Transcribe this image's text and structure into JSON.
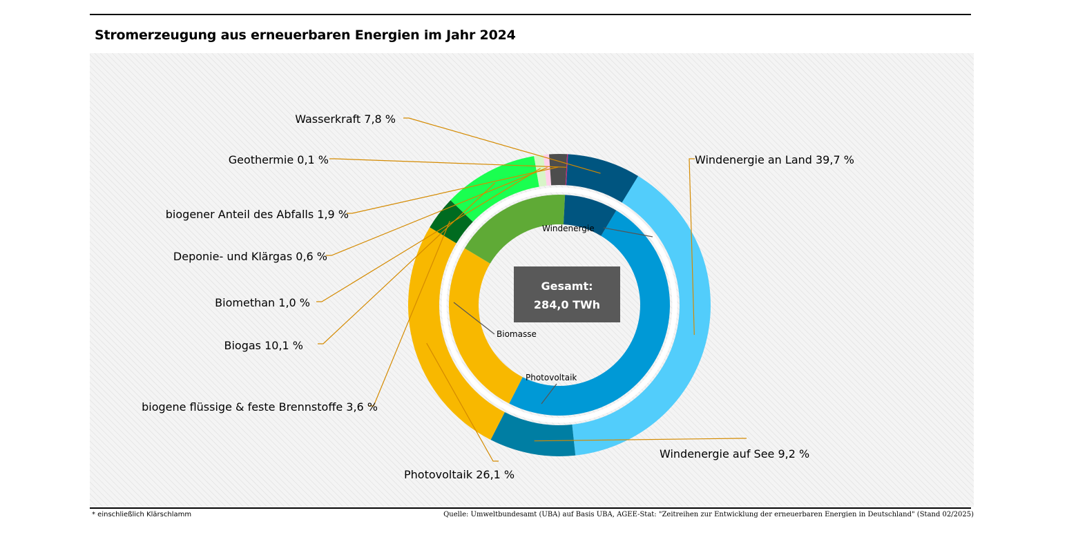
{
  "title": "Stromerzeugung aus erneuerbaren Energien im Jahr 2024",
  "footnote": "* einschließlich Klärschlamm",
  "source": "Quelle: Umweltbundesamt (UBA) auf Basis UBA, AGEE-Stat: \"Zeitreihen zur Entwicklung der erneuerbaren Energien in Deutschland\" (Stand 02/2025)",
  "center": {
    "line1": "Gesamt:",
    "line2": "284,0 TWh"
  },
  "chart_data": {
    "type": "pie",
    "subtype": "double-donut",
    "total_label": "284,0 TWh",
    "outer": [
      {
        "name": "Windenergie an Land",
        "value": 39.7,
        "label": "Windenergie an Land 39,7 %",
        "color": "#52cdfb"
      },
      {
        "name": "Windenergie auf See",
        "value": 9.2,
        "label": "Windenergie auf See 9,2 %",
        "color": "#007ea3"
      },
      {
        "name": "Photovoltaik",
        "value": 26.1,
        "label": "Photovoltaik 26,1 %",
        "color": "#f8b800"
      },
      {
        "name": "biogene flüssige & feste Brennstoffe",
        "value": 3.6,
        "label": "biogene flüssige & feste Brennstoffe 3,6 %",
        "color": "#006b20"
      },
      {
        "name": "Biogas",
        "value": 10.1,
        "label": "Biogas 10,1 %",
        "color": "#1aff50"
      },
      {
        "name": "Biomethan",
        "value": 1.0,
        "label": "Biomethan 1,0 %",
        "color": "#d8f5c8"
      },
      {
        "name": "Deponie- und Klärgas",
        "value": 0.6,
        "label": "Deponie- und Klärgas 0,6 %",
        "color": "#ffd0ea"
      },
      {
        "name": "biogener Anteil des Abfalls",
        "value": 1.9,
        "label": "biogener Anteil des Abfalls 1,9 %",
        "color": "#4d4d4d"
      },
      {
        "name": "Geothermie",
        "value": 0.1,
        "label": "Geothermie 0,1 %",
        "color": "#c0207a"
      },
      {
        "name": "Wasserkraft",
        "value": 7.8,
        "label": "Wasserkraft 7,8 %",
        "color": "#005580"
      }
    ],
    "inner": [
      {
        "name": "Windenergie",
        "value": 48.9,
        "label": "Windenergie",
        "color": "#0099d6"
      },
      {
        "name": "Photovoltaik",
        "value": 26.1,
        "label": "Photovoltaik",
        "color": "#f8b800"
      },
      {
        "name": "Biomasse",
        "value": 17.2,
        "label": "Biomasse",
        "color": "#5faa36"
      },
      {
        "name": "Wasserkraft",
        "value": 7.8,
        "label": "",
        "color": "#005580"
      }
    ],
    "leader_color": "#d48a00",
    "background_color": "#f2f2f2",
    "center_box_color": "#595959"
  }
}
